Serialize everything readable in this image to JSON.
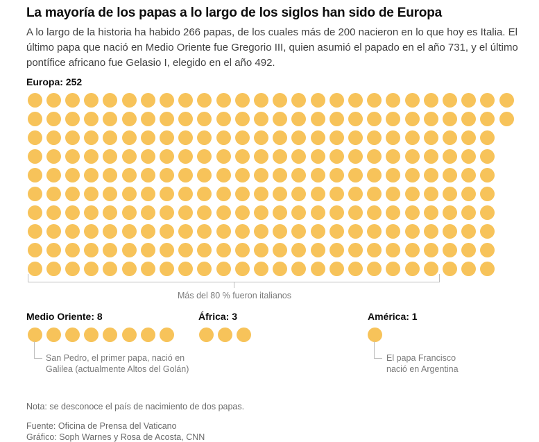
{
  "title": "La mayoría de los papas a lo largo de los siglos han sido de Europa",
  "subtitle": "A lo largo de la historia ha habido 266 papas, de los cuales más de 200 nacieron en lo que hoy es Italia. El último papa que nació en Medio Oriente fue Gregorio III, quien asumió el papado en el año 731, y el último pontífice africano fue Gelasio I, elegido en el año 492.",
  "chart_data": {
    "type": "waffle",
    "unit": "1 dot = 1 papa",
    "color": "#f7c35a",
    "groups": [
      {
        "label": "Europa: 252",
        "name": "Europa",
        "value": 252,
        "annotation": "Más del 80 % fueron italianos"
      },
      {
        "label": "Medio Oriente: 8",
        "name": "Medio Oriente",
        "value": 8,
        "annotation": "San Pedro, el primer papa, nació en Galilea (actualmente Altos del Golán)"
      },
      {
        "label": "África: 3",
        "name": "África",
        "value": 3
      },
      {
        "label": "América: 1",
        "name": "América",
        "value": 1,
        "annotation": "El papa Francisco nació en Argentina"
      }
    ]
  },
  "note": "Nota: se desconoce el país de nacimiento de dos papas.",
  "source": "Fuente: Oficina de Prensa del Vaticano",
  "credit": "Gráfico: Soph Warnes y Rosa de Acosta, CNN"
}
